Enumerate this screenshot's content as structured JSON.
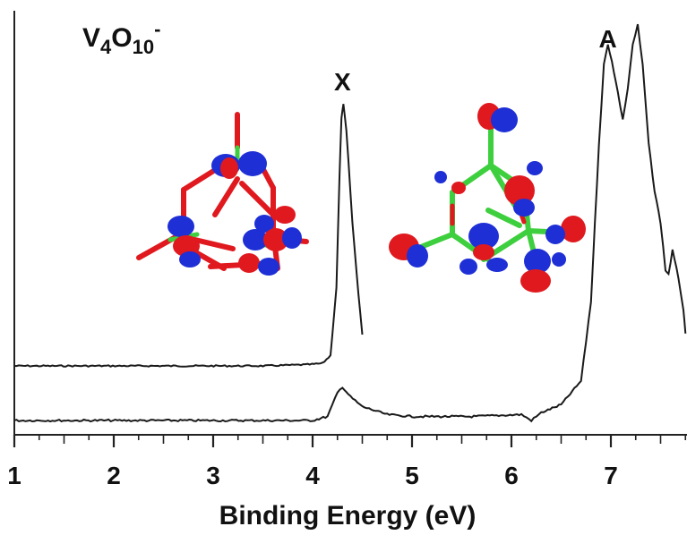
{
  "chart_data": {
    "type": "line",
    "title": "V4O10-",
    "title_parts": {
      "base1": "V",
      "sub1": "4",
      "base2": "O",
      "sub2": "10",
      "sup": "-"
    },
    "xlabel": "Binding Energy (eV)",
    "ylabel": "",
    "xlim": [
      1,
      7.75
    ],
    "x_ticks": [
      1,
      2,
      3,
      4,
      5,
      6,
      7
    ],
    "y_ticks": "none",
    "grid": false,
    "annotations": [
      {
        "text": "X",
        "x": 4.3
      },
      {
        "text": "A",
        "x": 6.97
      }
    ],
    "series": [
      {
        "points": [
          [
            1.0,
            0.0
          ],
          [
            3.5,
            0.0
          ],
          [
            3.95,
            0.005
          ],
          [
            4.1,
            0.01
          ],
          [
            4.18,
            0.04
          ],
          [
            4.24,
            0.3
          ],
          [
            4.27,
            0.72
          ],
          [
            4.29,
            0.95
          ],
          [
            4.31,
            1.0
          ],
          [
            4.34,
            0.9
          ],
          [
            4.4,
            0.55
          ],
          [
            4.46,
            0.28
          ],
          [
            4.5,
            0.12
          ]
        ]
      },
      {
        "points": [
          [
            1.0,
            0.0
          ],
          [
            4.0,
            0.0
          ],
          [
            4.15,
            0.01
          ],
          [
            4.25,
            0.07
          ],
          [
            4.3,
            0.085
          ],
          [
            4.38,
            0.06
          ],
          [
            4.5,
            0.035
          ],
          [
            4.75,
            0.015
          ],
          [
            5.0,
            0.01
          ],
          [
            5.6,
            0.01
          ],
          [
            6.1,
            0.015
          ],
          [
            6.2,
            0.0
          ],
          [
            6.3,
            0.02
          ],
          [
            6.5,
            0.04
          ],
          [
            6.7,
            0.1
          ],
          [
            6.8,
            0.3
          ],
          [
            6.88,
            0.7
          ],
          [
            6.93,
            0.9
          ],
          [
            6.97,
            0.95
          ],
          [
            7.01,
            0.91
          ],
          [
            7.07,
            0.83
          ],
          [
            7.12,
            0.76
          ],
          [
            7.17,
            0.84
          ],
          [
            7.22,
            0.95
          ],
          [
            7.27,
            1.0
          ],
          [
            7.32,
            0.9
          ],
          [
            7.38,
            0.7
          ],
          [
            7.44,
            0.58
          ],
          [
            7.5,
            0.5
          ],
          [
            7.55,
            0.38
          ],
          [
            7.58,
            0.37
          ],
          [
            7.62,
            0.43
          ],
          [
            7.68,
            0.36
          ],
          [
            7.73,
            0.28
          ],
          [
            7.75,
            0.22
          ]
        ]
      }
    ],
    "colors": {
      "line": "#1a1a1a",
      "orbital_red": "#e0191f",
      "orbital_blue": "#1e2fd6",
      "bond_green": "#3ecf3e"
    }
  }
}
